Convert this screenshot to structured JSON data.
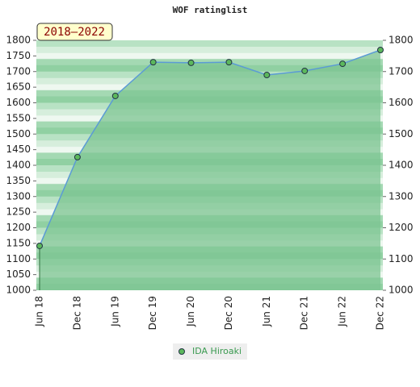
{
  "chart_data": {
    "type": "line",
    "title": "WOF ratinglist",
    "annotation": "2018–2022",
    "categories": [
      "Jun 18",
      "Dec 18",
      "Jun 19",
      "Dec 19",
      "Jun 20",
      "Dec 20",
      "Jun 21",
      "Dec 21",
      "Jun 22",
      "Dec 22"
    ],
    "series": [
      {
        "name": "IDA Hiroaki",
        "color": "#5b9bd5",
        "values": [
          1142,
          1426,
          1622,
          1730,
          1728,
          1730,
          1689,
          1702,
          1725,
          1769
        ]
      }
    ],
    "ylim": [
      1000,
      1800
    ],
    "yticks": [
      1000,
      1050,
      1100,
      1150,
      1200,
      1250,
      1300,
      1350,
      1400,
      1450,
      1500,
      1550,
      1600,
      1650,
      1700,
      1750,
      1800
    ],
    "y2lim": [
      1000,
      1800
    ],
    "y2ticks": [
      1000,
      1100,
      1200,
      1300,
      1400,
      1500,
      1600,
      1700,
      1800
    ]
  }
}
